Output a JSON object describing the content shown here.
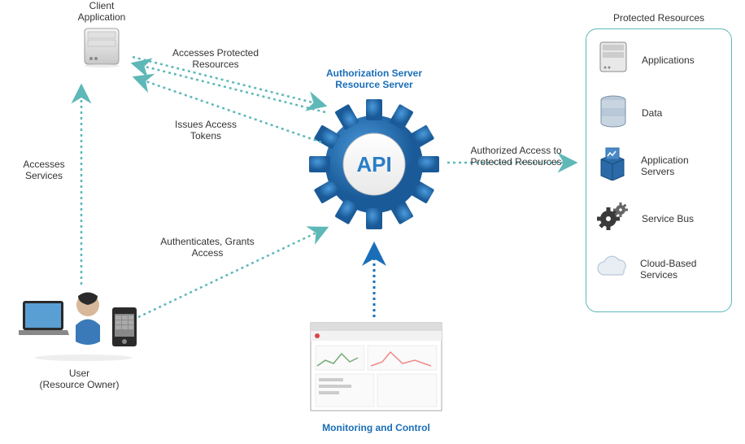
{
  "colors": {
    "arrow_teal": "#5eb8b8",
    "arrow_blue": "#1a6eb8",
    "text_blue": "#1a6eb8",
    "text_dark": "#333333",
    "box_border": "#5eb8b8",
    "gear_blue": "#2a7ec8",
    "gear_blue_dark": "#1a5a98"
  },
  "nodes": {
    "client_app": {
      "title1": "Client",
      "title2": "Application"
    },
    "user": {
      "title1": "User",
      "title2": "(Resource Owner)"
    },
    "api": {
      "title1": "Authorization Server",
      "title2": "Resource Server",
      "center_text": "API"
    },
    "monitoring": {
      "title": "Monitoring and Control"
    },
    "protected": {
      "title": "Protected Resources",
      "items": [
        {
          "key": "applications",
          "label": "Applications",
          "icon": "server"
        },
        {
          "key": "data",
          "label": "Data",
          "icon": "database"
        },
        {
          "key": "app_servers",
          "label": "Application Servers",
          "icon": "box"
        },
        {
          "key": "service_bus",
          "label": "Service Bus",
          "icon": "gears"
        },
        {
          "key": "cloud",
          "label": "Cloud-Based Services",
          "icon": "cloud"
        }
      ]
    }
  },
  "edges": [
    {
      "key": "accesses_services",
      "label": "Accesses Services"
    },
    {
      "key": "accesses_protected",
      "label": "Accesses Protected Resources"
    },
    {
      "key": "issues_tokens",
      "label": "Issues Access Tokens"
    },
    {
      "key": "authenticates",
      "label": "Authenticates, Grants Access"
    },
    {
      "key": "authorized_access",
      "label": "Authorized Access to Protected Resources"
    }
  ]
}
